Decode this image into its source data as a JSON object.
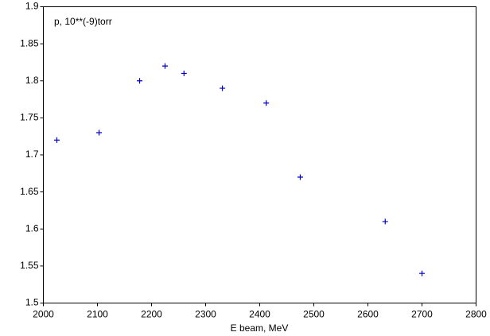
{
  "chart_data": {
    "type": "scatter",
    "annotation": "p, 10**(-9)torr",
    "x_label": "E beam, MeV",
    "series": [
      {
        "name": "p",
        "color": "#0000cc",
        "x": [
          2025,
          2103,
          2178,
          2225,
          2260,
          2331,
          2412,
          2475,
          2632,
          2700
        ],
        "values": [
          1.72,
          1.73,
          1.8,
          1.82,
          1.81,
          1.79,
          1.77,
          1.67,
          1.61,
          1.54
        ]
      }
    ],
    "xlim": [
      2000,
      2800
    ],
    "xticks": [
      2000,
      2100,
      2200,
      2300,
      2400,
      2500,
      2600,
      2700,
      2800
    ],
    "ylim": [
      1.5,
      1.9
    ],
    "yticks": [
      1.5,
      1.55,
      1.6,
      1.65,
      1.7,
      1.75,
      1.8,
      1.85,
      1.9
    ],
    "grid": false
  }
}
